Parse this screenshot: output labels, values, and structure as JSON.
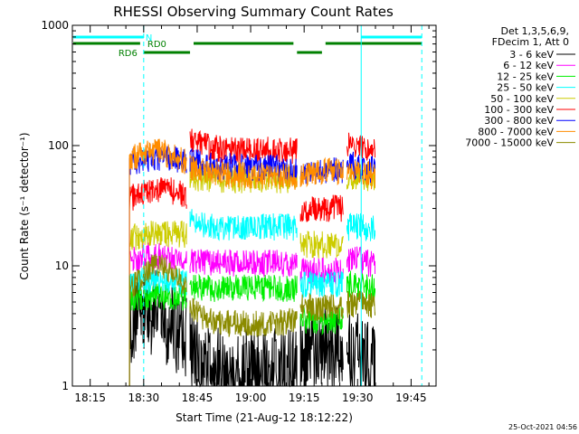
{
  "chart_data": {
    "type": "line",
    "title": "RHESSI Observing Summary Count Rates",
    "xlabel": "Start Time (21-Aug-12 18:12:22)",
    "ylabel": "Count Rate (s⁻¹ detector⁻¹)",
    "y_scale": "log",
    "xlim": [
      "18:10",
      "19:52"
    ],
    "ylim": [
      1,
      1000
    ],
    "x_ticks": [
      "18:15",
      "18:30",
      "18:45",
      "19:00",
      "19:15",
      "19:30",
      "19:45"
    ],
    "y_ticks": [
      {
        "value": 1,
        "label": "1"
      },
      {
        "value": 10,
        "label": "10"
      },
      {
        "value": 100,
        "label": "100"
      },
      {
        "value": 1000,
        "label": "1000"
      }
    ],
    "legend_position": "right",
    "legend_header": [
      "Det 1,3,5,6,9,",
      "FDecim 1, Att 0"
    ],
    "series": [
      {
        "name": "3 - 6 keV",
        "color": "#000000",
        "segments": [
          {
            "x": [
              "18:26",
              "18:28",
              "18:30",
              "18:32",
              "18:34",
              "18:36",
              "18:38",
              "18:40",
              "18:42"
            ],
            "y": [
              3.5,
              3.8,
              4.0,
              4.0,
              4.0,
              3.6,
              3.2,
              3.0,
              2.8
            ]
          },
          {
            "x": [
              "18:43",
              "18:46",
              "18:50",
              "18:55",
              "19:00",
              "19:05",
              "19:10",
              "19:13"
            ],
            "y": [
              2.2,
              1.6,
              1.3,
              1.3,
              1.3,
              1.3,
              1.3,
              1.3
            ]
          },
          {
            "x": [
              "19:14",
              "19:17",
              "19:20",
              "19:23",
              "19:26"
            ],
            "y": [
              1.9,
              1.9,
              1.9,
              1.9,
              1.9
            ]
          },
          {
            "x": [
              "19:27",
              "19:30",
              "19:33",
              "19:35"
            ],
            "y": [
              2.1,
              1.7,
              1.5,
              1.4
            ]
          }
        ]
      },
      {
        "name": "6 - 12 keV",
        "color": "#ff00ff",
        "segments": [
          {
            "x": [
              "18:26",
              "18:30",
              "18:34",
              "18:38",
              "18:42"
            ],
            "y": [
              11.0,
              12.0,
              12.0,
              11.5,
              11.0
            ]
          },
          {
            "x": [
              "18:43",
              "18:50",
              "19:00",
              "19:13"
            ],
            "y": [
              11.0,
              10.5,
              10.5,
              10.5
            ]
          },
          {
            "x": [
              "19:14",
              "19:20",
              "19:26"
            ],
            "y": [
              9.0,
              9.0,
              9.0
            ]
          },
          {
            "x": [
              "19:27",
              "19:29",
              "19:31",
              "19:35"
            ],
            "y": [
              11.0,
              12.5,
              11.0,
              10.0
            ]
          }
        ]
      },
      {
        "name": "12 - 25 keV",
        "color": "#00ee00",
        "segments": [
          {
            "x": [
              "18:26",
              "18:30",
              "18:34",
              "18:38",
              "18:42"
            ],
            "y": [
              5.5,
              5.5,
              5.5,
              5.5,
              5.5
            ]
          },
          {
            "x": [
              "18:43",
              "18:50",
              "19:00",
              "19:13"
            ],
            "y": [
              6.5,
              6.5,
              6.5,
              6.5
            ]
          },
          {
            "x": [
              "19:14",
              "19:20",
              "19:26"
            ],
            "y": [
              3.5,
              3.5,
              3.5
            ]
          },
          {
            "x": [
              "19:27",
              "19:31",
              "19:35"
            ],
            "y": [
              7.0,
              7.0,
              6.5
            ]
          }
        ]
      },
      {
        "name": "25 - 50 keV",
        "color": "#00ffff",
        "segments": [
          {
            "x": [
              "18:26",
              "18:30",
              "18:34",
              "18:38",
              "18:42"
            ],
            "y": [
              7.0,
              7.5,
              7.5,
              7.5,
              7.0
            ]
          },
          {
            "x": [
              "18:43",
              "18:50",
              "19:00",
              "19:13"
            ],
            "y": [
              23.0,
              21.0,
              21.0,
              21.0
            ]
          },
          {
            "x": [
              "19:14",
              "19:20",
              "19:26"
            ],
            "y": [
              7.0,
              7.0,
              7.0
            ]
          },
          {
            "x": [
              "19:27",
              "19:31",
              "19:35"
            ],
            "y": [
              21.0,
              21.0,
              20.0
            ]
          }
        ]
      },
      {
        "name": "50 - 100 keV",
        "color": "#cccc00",
        "segments": [
          {
            "x": [
              "18:26",
              "18:30",
              "18:34",
              "18:38",
              "18:42"
            ],
            "y": [
              17.0,
              18.0,
              18.5,
              18.5,
              18.0
            ]
          },
          {
            "x": [
              "18:43",
              "18:50",
              "19:00",
              "19:13"
            ],
            "y": [
              55.0,
              52.0,
              52.0,
              52.0
            ]
          },
          {
            "x": [
              "19:14",
              "19:20",
              "19:26"
            ],
            "y": [
              15.0,
              15.0,
              15.0
            ]
          },
          {
            "x": [
              "19:27",
              "19:31",
              "19:35"
            ],
            "y": [
              55.0,
              55.0,
              53.0
            ]
          }
        ]
      },
      {
        "name": "100 - 300 keV",
        "color": "#ff0000",
        "segments": [
          {
            "x": [
              "18:26",
              "18:30",
              "18:34",
              "18:38",
              "18:42"
            ],
            "y": [
              36.0,
              40.0,
              42.0,
              42.0,
              38.0
            ]
          },
          {
            "x": [
              "18:43",
              "18:45",
              "18:50",
              "18:55",
              "19:00",
              "19:05",
              "19:10",
              "19:13"
            ],
            "y": [
              112.0,
              105.0,
              95.0,
              90.0,
              92.0,
              92.0,
              90.0,
              90.0
            ]
          },
          {
            "x": [
              "19:14",
              "19:20",
              "19:26"
            ],
            "y": [
              30.0,
              30.0,
              30.0
            ]
          },
          {
            "x": [
              "19:27",
              "19:31",
              "19:35"
            ],
            "y": [
              100.0,
              98.0,
              90.0
            ]
          }
        ]
      },
      {
        "name": "300 - 800 keV",
        "color": "#0000ff",
        "segments": [
          {
            "x": [
              "18:26",
              "18:30",
              "18:34",
              "18:38",
              "18:42"
            ],
            "y": [
              72.0,
              78.0,
              80.0,
              78.0,
              72.0
            ]
          },
          {
            "x": [
              "18:43",
              "18:50",
              "19:00",
              "19:13"
            ],
            "y": [
              74.0,
              68.0,
              66.0,
              65.0
            ]
          },
          {
            "x": [
              "19:14",
              "19:20",
              "19:26"
            ],
            "y": [
              60.0,
              62.0,
              63.0
            ]
          },
          {
            "x": [
              "19:27",
              "19:31",
              "19:35"
            ],
            "y": [
              70.0,
              67.0,
              62.0
            ]
          }
        ]
      },
      {
        "name": "800 - 7000 keV",
        "color": "#ff8c00",
        "segments": [
          {
            "x": [
              "18:26",
              "18:28",
              "18:30",
              "18:32",
              "18:34",
              "18:36",
              "18:38",
              "18:40",
              "18:42"
            ],
            "y": [
              78.0,
              82.0,
              85.0,
              87.0,
              88.0,
              86.0,
              82.0,
              77.0,
              72.0
            ]
          },
          {
            "x": [
              "18:43",
              "18:50",
              "19:00",
              "19:13"
            ],
            "y": [
              65.0,
              58.0,
              56.0,
              55.0
            ]
          },
          {
            "x": [
              "19:14",
              "19:20",
              "19:26"
            ],
            "y": [
              58.0,
              60.0,
              62.0
            ]
          },
          {
            "x": [
              "19:27",
              "19:31",
              "19:35"
            ],
            "y": [
              63.0,
              60.0,
              55.0
            ]
          }
        ]
      },
      {
        "name": "7000 - 15000 keV",
        "color": "#8b8b00",
        "segments": [
          {
            "x": [
              "18:26",
              "18:28",
              "18:30",
              "18:32",
              "18:34",
              "18:36",
              "18:38",
              "18:40",
              "18:42"
            ],
            "y": [
              6.5,
              7.5,
              8.5,
              9.5,
              10.0,
              9.5,
              8.5,
              7.5,
              6.5
            ]
          },
          {
            "x": [
              "18:43",
              "18:45",
              "18:48",
              "18:52",
              "18:56",
              "19:00",
              "19:05",
              "19:10",
              "19:13"
            ],
            "y": [
              5.0,
              4.0,
              3.5,
              3.3,
              3.3,
              3.3,
              3.3,
              3.4,
              3.5
            ]
          },
          {
            "x": [
              "19:14",
              "19:20",
              "19:26"
            ],
            "y": [
              4.5,
              4.5,
              4.5
            ]
          },
          {
            "x": [
              "19:27",
              "19:31",
              "19:35"
            ],
            "y": [
              4.8,
              4.8,
              4.5
            ]
          }
        ]
      }
    ],
    "flags": [
      {
        "label": "N",
        "color": "#00ffff",
        "level": 1,
        "spans": [
          [
            "18:10",
            "18:30"
          ],
          [
            "19:31",
            "19:48"
          ]
        ]
      },
      {
        "label": "RD0",
        "color": "#008000",
        "level": 2,
        "spans": [
          [
            "18:10",
            "18:29"
          ],
          [
            "18:44",
            "19:12"
          ],
          [
            "19:21",
            "19:48"
          ]
        ]
      },
      {
        "label": "RD6",
        "color": "#008000",
        "level": 3,
        "spans": [
          [
            "18:30",
            "18:43"
          ],
          [
            "19:13",
            "19:20"
          ]
        ]
      }
    ],
    "vlines": [
      {
        "x": "18:10",
        "color": "#00ffff",
        "style": "solid"
      },
      {
        "x": "18:30",
        "color": "#00ffff",
        "style": "dashed"
      },
      {
        "x": "19:31",
        "color": "#00ffff",
        "style": "solid"
      },
      {
        "x": "19:48",
        "color": "#00ffff",
        "style": "dashed"
      }
    ]
  },
  "timestamp": "25-Oct-2021 04:56"
}
